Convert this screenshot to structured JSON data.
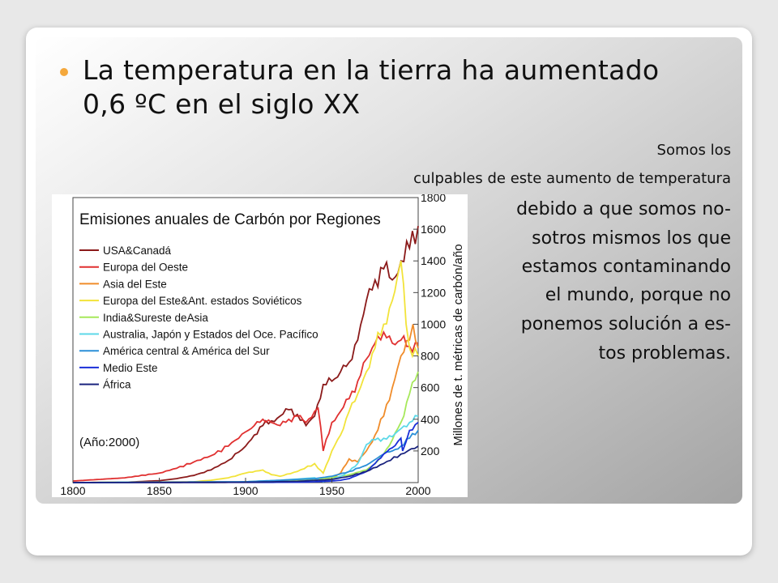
{
  "slide": {
    "title_line1": "La temperatura en la tierra ha aumentado",
    "title_line2": "0,6 ºC en el siglo XX",
    "side_text": [
      "Somos los",
      "culpables de este aumento de temperatura",
      "debido a que somos no-",
      "sotros mismos los que",
      "estamos contaminando",
      "el mundo, porque no",
      "ponemos solución a es-",
      "tos problemas."
    ],
    "bullet_color": "#f4a83c"
  },
  "chart_data": {
    "type": "line",
    "title": "Emisiones anuales de Carbón por Regiones",
    "ylabel": "Millones de t. métricas de carbón/año",
    "xlabel": "",
    "annotation": "(Año:2000)",
    "xlim": [
      1800,
      2000
    ],
    "ylim": [
      0,
      1800
    ],
    "x_ticks": [
      1800,
      1850,
      1900,
      1950,
      2000
    ],
    "y_ticks": [
      200,
      400,
      600,
      800,
      1000,
      1200,
      1400,
      1600,
      1800
    ],
    "legend_position": "top-left",
    "grid": false,
    "series": [
      {
        "name": "USA&Canadá",
        "color": "#8b1a1a",
        "x": [
          1800,
          1830,
          1850,
          1860,
          1870,
          1880,
          1890,
          1900,
          1905,
          1910,
          1915,
          1920,
          1925,
          1930,
          1935,
          1940,
          1945,
          1950,
          1955,
          1960,
          1965,
          1970,
          1975,
          1980,
          1985,
          1990,
          1995,
          2000
        ],
        "y": [
          0,
          2,
          12,
          25,
          45,
          80,
          140,
          230,
          300,
          360,
          390,
          420,
          460,
          430,
          360,
          420,
          620,
          640,
          700,
          760,
          900,
          1150,
          1280,
          1350,
          1280,
          1400,
          1480,
          1620
        ]
      },
      {
        "name": "Europa del Oeste",
        "color": "#e03030",
        "x": [
          1800,
          1830,
          1850,
          1860,
          1870,
          1880,
          1890,
          1900,
          1905,
          1910,
          1915,
          1920,
          1925,
          1930,
          1935,
          1940,
          1942,
          1945,
          1950,
          1955,
          1960,
          1965,
          1970,
          1975,
          1980,
          1985,
          1990,
          1995,
          2000
        ],
        "y": [
          10,
          30,
          60,
          90,
          130,
          170,
          230,
          320,
          360,
          400,
          380,
          360,
          400,
          420,
          380,
          450,
          470,
          200,
          380,
          450,
          530,
          640,
          780,
          880,
          950,
          880,
          900,
          860,
          880
        ]
      },
      {
        "name": "Asia del Este",
        "color": "#f08c2a",
        "x": [
          1800,
          1900,
          1940,
          1950,
          1955,
          1960,
          1965,
          1970,
          1975,
          1980,
          1985,
          1988,
          1990,
          1995,
          1997,
          2000
        ],
        "y": [
          0,
          2,
          15,
          25,
          60,
          150,
          130,
          200,
          300,
          420,
          600,
          720,
          800,
          900,
          1000,
          850
        ]
      },
      {
        "name": "Europa del Este&Ant. estados Soviéticos",
        "color": "#f2e33a",
        "x": [
          1800,
          1870,
          1880,
          1890,
          1900,
          1910,
          1915,
          1920,
          1930,
          1940,
          1942,
          1945,
          1950,
          1955,
          1960,
          1965,
          1970,
          1975,
          1980,
          1985,
          1988,
          1990,
          1993,
          1995,
          2000
        ],
        "y": [
          0,
          5,
          15,
          30,
          60,
          80,
          50,
          40,
          70,
          120,
          90,
          60,
          200,
          300,
          450,
          560,
          700,
          850,
          1000,
          1150,
          1300,
          1400,
          1000,
          850,
          800
        ]
      },
      {
        "name": "India&Sureste deAsia",
        "color": "#a6e85a",
        "x": [
          1800,
          1900,
          1940,
          1950,
          1960,
          1970,
          1975,
          1980,
          1985,
          1990,
          1995,
          2000
        ],
        "y": [
          0,
          5,
          20,
          30,
          50,
          80,
          120,
          180,
          270,
          380,
          560,
          700
        ]
      },
      {
        "name": "Australia, Japón y Estados del Oce. Pacífico",
        "color": "#5cd8e8",
        "x": [
          1800,
          1900,
          1920,
          1940,
          1945,
          1950,
          1955,
          1960,
          1965,
          1970,
          1975,
          1980,
          1985,
          1990,
          1995,
          2000
        ],
        "y": [
          0,
          5,
          15,
          30,
          5,
          20,
          40,
          70,
          120,
          240,
          270,
          280,
          290,
          340,
          380,
          420
        ]
      },
      {
        "name": "América central & América del Sur",
        "color": "#2a8fd8",
        "x": [
          1800,
          1900,
          1920,
          1940,
          1950,
          1960,
          1970,
          1980,
          1985,
          1990,
          1995,
          2000
        ],
        "y": [
          0,
          5,
          15,
          25,
          40,
          70,
          110,
          180,
          200,
          230,
          280,
          330
        ]
      },
      {
        "name": "Medio Este",
        "color": "#1a2fd8",
        "x": [
          1800,
          1930,
          1940,
          1950,
          1955,
          1960,
          1970,
          1975,
          1980,
          1985,
          1990,
          1991,
          1995,
          2000
        ],
        "y": [
          0,
          2,
          5,
          10,
          15,
          25,
          70,
          120,
          180,
          220,
          280,
          200,
          330,
          380
        ]
      },
      {
        "name": "África",
        "color": "#1a237e",
        "x": [
          1800,
          1900,
          1930,
          1950,
          1960,
          1970,
          1980,
          1990,
          2000
        ],
        "y": [
          0,
          2,
          8,
          20,
          40,
          70,
          120,
          180,
          230
        ]
      }
    ]
  }
}
